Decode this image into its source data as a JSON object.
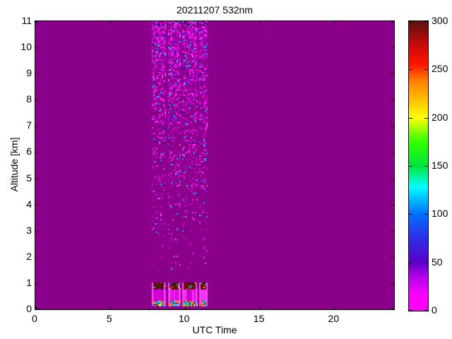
{
  "title": "20211207 532nm",
  "chart_data": {
    "type": "heatmap",
    "title": "20211207 532nm",
    "xlabel": "UTC Time",
    "ylabel": "Altitude [km]",
    "xlim": [
      0,
      24
    ],
    "ylim": [
      0,
      11
    ],
    "x_ticks": [
      0,
      5,
      10,
      15,
      20
    ],
    "y_ticks": [
      0,
      1,
      2,
      3,
      4,
      5,
      6,
      7,
      8,
      9,
      10,
      11
    ],
    "grid": false,
    "background_value": 8,
    "background_color": "#8B008B",
    "colorbar": {
      "position": "right",
      "range": [
        0,
        300
      ],
      "ticks": [
        0,
        50,
        100,
        150,
        200,
        250,
        300
      ],
      "stops": [
        {
          "value": 0,
          "color": "#F500F5"
        },
        {
          "value": 15,
          "color": "#FF00FF"
        },
        {
          "value": 35,
          "color": "#B400E6"
        },
        {
          "value": 50,
          "color": "#5A00C8"
        },
        {
          "value": 75,
          "color": "#2E2EE6"
        },
        {
          "value": 100,
          "color": "#0070FF"
        },
        {
          "value": 118,
          "color": "#00C8FF"
        },
        {
          "value": 128,
          "color": "#00FFFF"
        },
        {
          "value": 150,
          "color": "#00E63C"
        },
        {
          "value": 175,
          "color": "#32FF00"
        },
        {
          "value": 200,
          "color": "#FFFF00"
        },
        {
          "value": 222,
          "color": "#FFB400"
        },
        {
          "value": 238,
          "color": "#FF8200"
        },
        {
          "value": 255,
          "color": "#FF1400"
        },
        {
          "value": 275,
          "color": "#C80A0A"
        },
        {
          "value": 300,
          "color": "#591111"
        }
      ]
    },
    "measurement_periods_utc": [
      {
        "t_start": 7.8,
        "t_end": 8.7
      },
      {
        "t_start": 8.9,
        "t_end": 9.7
      },
      {
        "t_start": 9.85,
        "t_end": 10.8
      },
      {
        "t_start": 10.95,
        "t_end": 11.55
      }
    ],
    "noise_region": {
      "alt_min_km": 1.35,
      "alt_max_km": 11,
      "description": "speckle noise within measurement periods, density increasing with altitude, values ~10-100"
    },
    "surface_echo_blocks": {
      "cap_alt_km": [
        0.78,
        1.02
      ],
      "cap_value": 300,
      "body_alt_km": [
        0.32,
        0.78
      ],
      "body_value": 15,
      "base_alt_km": [
        0.13,
        0.32
      ],
      "base_value_range": [
        50,
        300
      ]
    }
  }
}
